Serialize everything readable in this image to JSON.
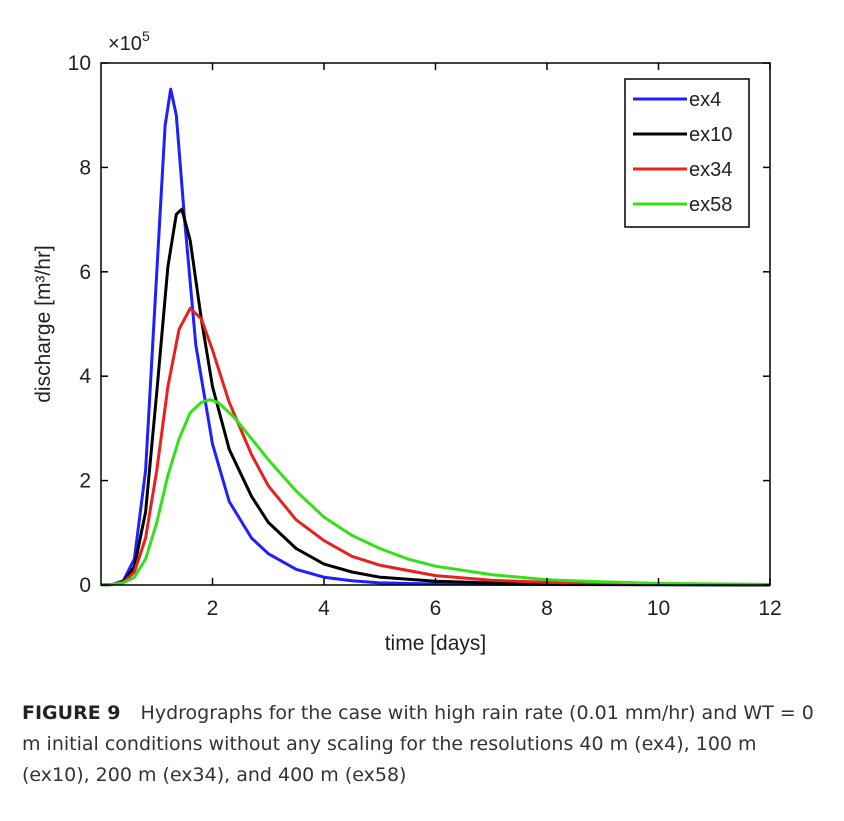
{
  "chart_data": {
    "type": "line",
    "xlabel": "time [days]",
    "ylabel": "discharge [m³/hr]",
    "y_multiplier_label": "×10",
    "y_multiplier_exponent": "5",
    "xlim": [
      0,
      12
    ],
    "ylim": [
      0,
      10
    ],
    "x_ticks": [
      2,
      4,
      6,
      8,
      10,
      12
    ],
    "y_ticks": [
      0,
      2,
      4,
      6,
      8,
      10
    ],
    "grid": false,
    "legend_position": "top-right",
    "series": [
      {
        "name": "ex4",
        "color": "#1f1fff",
        "points": [
          [
            0,
            0
          ],
          [
            0.2,
            0.01
          ],
          [
            0.4,
            0.08
          ],
          [
            0.6,
            0.5
          ],
          [
            0.8,
            2.2
          ],
          [
            1.0,
            6.0
          ],
          [
            1.15,
            8.8
          ],
          [
            1.25,
            9.5
          ],
          [
            1.35,
            9.0
          ],
          [
            1.5,
            7.0
          ],
          [
            1.7,
            4.6
          ],
          [
            2.0,
            2.7
          ],
          [
            2.3,
            1.6
          ],
          [
            2.7,
            0.9
          ],
          [
            3.0,
            0.6
          ],
          [
            3.5,
            0.3
          ],
          [
            4.0,
            0.15
          ],
          [
            4.5,
            0.08
          ],
          [
            5.0,
            0.04
          ],
          [
            6.0,
            0.02
          ],
          [
            8.0,
            0.01
          ],
          [
            12,
            0.0
          ]
        ]
      },
      {
        "name": "ex10",
        "color": "#000000",
        "points": [
          [
            0,
            0
          ],
          [
            0.2,
            0.01
          ],
          [
            0.4,
            0.06
          ],
          [
            0.6,
            0.35
          ],
          [
            0.8,
            1.4
          ],
          [
            1.0,
            3.7
          ],
          [
            1.2,
            6.1
          ],
          [
            1.35,
            7.1
          ],
          [
            1.45,
            7.2
          ],
          [
            1.6,
            6.6
          ],
          [
            1.8,
            5.1
          ],
          [
            2.0,
            3.8
          ],
          [
            2.3,
            2.6
          ],
          [
            2.7,
            1.7
          ],
          [
            3.0,
            1.2
          ],
          [
            3.5,
            0.7
          ],
          [
            4.0,
            0.4
          ],
          [
            4.5,
            0.25
          ],
          [
            5.0,
            0.15
          ],
          [
            6.0,
            0.07
          ],
          [
            7.0,
            0.04
          ],
          [
            8.0,
            0.02
          ],
          [
            10.0,
            0.01
          ],
          [
            12,
            0.0
          ]
        ]
      },
      {
        "name": "ex34",
        "color": "#e82020",
        "points": [
          [
            0,
            0
          ],
          [
            0.2,
            0.01
          ],
          [
            0.4,
            0.05
          ],
          [
            0.6,
            0.25
          ],
          [
            0.8,
            0.9
          ],
          [
            1.0,
            2.2
          ],
          [
            1.2,
            3.8
          ],
          [
            1.4,
            4.9
          ],
          [
            1.6,
            5.3
          ],
          [
            1.8,
            5.1
          ],
          [
            2.0,
            4.5
          ],
          [
            2.3,
            3.5
          ],
          [
            2.7,
            2.5
          ],
          [
            3.0,
            1.9
          ],
          [
            3.5,
            1.25
          ],
          [
            4.0,
            0.85
          ],
          [
            4.5,
            0.55
          ],
          [
            5.0,
            0.38
          ],
          [
            6.0,
            0.18
          ],
          [
            7.0,
            0.09
          ],
          [
            8.0,
            0.05
          ],
          [
            10.0,
            0.02
          ],
          [
            12,
            0.01
          ]
        ]
      },
      {
        "name": "ex58",
        "color": "#33e01a",
        "points": [
          [
            0,
            0
          ],
          [
            0.2,
            0.01
          ],
          [
            0.4,
            0.04
          ],
          [
            0.6,
            0.15
          ],
          [
            0.8,
            0.5
          ],
          [
            1.0,
            1.2
          ],
          [
            1.2,
            2.1
          ],
          [
            1.4,
            2.8
          ],
          [
            1.6,
            3.3
          ],
          [
            1.8,
            3.5
          ],
          [
            1.95,
            3.55
          ],
          [
            2.1,
            3.5
          ],
          [
            2.4,
            3.2
          ],
          [
            2.7,
            2.8
          ],
          [
            3.0,
            2.4
          ],
          [
            3.5,
            1.8
          ],
          [
            4.0,
            1.3
          ],
          [
            4.5,
            0.95
          ],
          [
            5.0,
            0.7
          ],
          [
            5.5,
            0.5
          ],
          [
            6.0,
            0.36
          ],
          [
            7.0,
            0.2
          ],
          [
            8.0,
            0.1
          ],
          [
            9.0,
            0.06
          ],
          [
            10.0,
            0.03
          ],
          [
            12,
            0.01
          ]
        ]
      }
    ]
  },
  "caption": {
    "label": "FIGURE 9",
    "text": "Hydrographs for the case with high rain rate (0.01 mm/hr) and WT = 0 m initial conditions without any scaling for the resolutions 40 m (ex4), 100 m (ex10), 200 m (ex34), and 400 m (ex58)"
  }
}
